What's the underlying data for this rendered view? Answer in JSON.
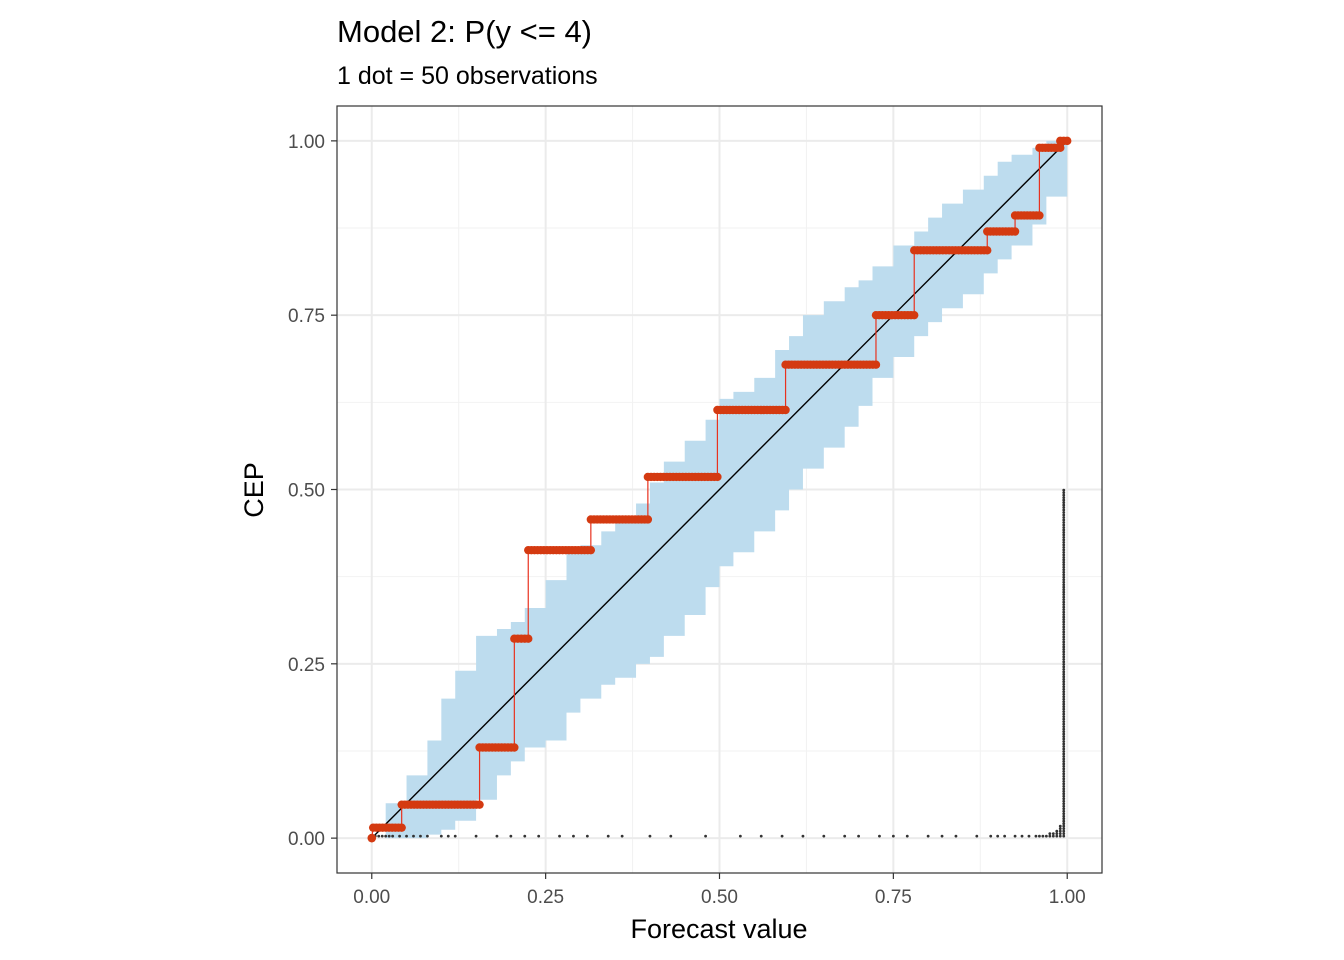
{
  "chart_data": {
    "type": "scatter",
    "title": "Model 2: P(y <= 4)",
    "subtitle": "1 dot = 50 observations",
    "xlabel": "Forecast value",
    "ylabel": "CEP",
    "xlim": [
      -0.05,
      1.05
    ],
    "ylim": [
      -0.05,
      1.05
    ],
    "x_ticks": [
      "0.00",
      "0.25",
      "0.50",
      "0.75",
      "1.00"
    ],
    "y_ticks": [
      "0.00",
      "0.25",
      "0.50",
      "0.75",
      "1.00"
    ],
    "grid": true,
    "colors": {
      "cep": "#d43a11",
      "band": "#bddcee",
      "diagonal": "#000000",
      "histogram": "#333333"
    },
    "cep_steps": [
      {
        "x0": 0.0,
        "x1": 0.0,
        "y": 0.0
      },
      {
        "x0": 0.002,
        "x1": 0.043,
        "y": 0.015
      },
      {
        "x0": 0.043,
        "x1": 0.155,
        "y": 0.048
      },
      {
        "x0": 0.155,
        "x1": 0.205,
        "y": 0.13
      },
      {
        "x0": 0.205,
        "x1": 0.225,
        "y": 0.286
      },
      {
        "x0": 0.225,
        "x1": 0.315,
        "y": 0.413
      },
      {
        "x0": 0.315,
        "x1": 0.397,
        "y": 0.457
      },
      {
        "x0": 0.397,
        "x1": 0.497,
        "y": 0.518
      },
      {
        "x0": 0.497,
        "x1": 0.595,
        "y": 0.614
      },
      {
        "x0": 0.595,
        "x1": 0.725,
        "y": 0.679
      },
      {
        "x0": 0.725,
        "x1": 0.78,
        "y": 0.75
      },
      {
        "x0": 0.78,
        "x1": 0.885,
        "y": 0.843
      },
      {
        "x0": 0.885,
        "x1": 0.925,
        "y": 0.87
      },
      {
        "x0": 0.925,
        "x1": 0.96,
        "y": 0.893
      },
      {
        "x0": 0.96,
        "x1": 0.99,
        "y": 0.99
      },
      {
        "x0": 0.99,
        "x1": 1.0,
        "y": 1.0
      }
    ],
    "band": {
      "x": [
        0.0,
        0.02,
        0.05,
        0.08,
        0.1,
        0.12,
        0.15,
        0.18,
        0.2,
        0.22,
        0.25,
        0.28,
        0.3,
        0.33,
        0.35,
        0.38,
        0.4,
        0.42,
        0.45,
        0.48,
        0.5,
        0.52,
        0.55,
        0.58,
        0.6,
        0.62,
        0.65,
        0.68,
        0.7,
        0.72,
        0.75,
        0.78,
        0.8,
        0.82,
        0.85,
        0.88,
        0.9,
        0.92,
        0.95,
        0.97,
        1.0
      ],
      "lower": [
        0.0,
        0.0,
        0.0,
        0.005,
        0.012,
        0.025,
        0.055,
        0.09,
        0.11,
        0.13,
        0.14,
        0.18,
        0.2,
        0.22,
        0.23,
        0.25,
        0.26,
        0.29,
        0.32,
        0.36,
        0.39,
        0.41,
        0.44,
        0.47,
        0.5,
        0.53,
        0.56,
        0.59,
        0.62,
        0.66,
        0.69,
        0.72,
        0.74,
        0.76,
        0.78,
        0.81,
        0.83,
        0.85,
        0.88,
        0.92,
        0.99
      ],
      "upper": [
        0.0,
        0.05,
        0.09,
        0.14,
        0.2,
        0.24,
        0.29,
        0.3,
        0.31,
        0.33,
        0.37,
        0.41,
        0.42,
        0.44,
        0.46,
        0.48,
        0.51,
        0.54,
        0.57,
        0.6,
        0.63,
        0.64,
        0.66,
        0.7,
        0.72,
        0.75,
        0.77,
        0.79,
        0.8,
        0.82,
        0.85,
        0.87,
        0.89,
        0.91,
        0.93,
        0.95,
        0.97,
        0.98,
        0.99,
        1.0,
        1.0
      ]
    },
    "histogram": {
      "x": [
        0.0,
        0.005,
        0.01,
        0.015,
        0.02,
        0.025,
        0.03,
        0.04,
        0.05,
        0.06,
        0.07,
        0.08,
        0.1,
        0.11,
        0.12,
        0.15,
        0.18,
        0.2,
        0.22,
        0.24,
        0.27,
        0.29,
        0.31,
        0.34,
        0.36,
        0.4,
        0.43,
        0.48,
        0.53,
        0.56,
        0.59,
        0.62,
        0.65,
        0.68,
        0.7,
        0.73,
        0.75,
        0.77,
        0.8,
        0.82,
        0.84,
        0.87,
        0.89,
        0.9,
        0.91,
        0.925,
        0.935,
        0.945,
        0.955,
        0.96,
        0.965,
        0.97,
        0.975,
        0.98,
        0.985,
        0.99,
        0.995
      ],
      "dots": [
        1,
        1,
        1,
        1,
        1,
        1,
        1,
        1,
        1,
        1,
        1,
        1,
        1,
        1,
        1,
        1,
        1,
        1,
        1,
        1,
        1,
        1,
        1,
        1,
        1,
        1,
        1,
        1,
        1,
        1,
        1,
        1,
        1,
        1,
        1,
        1,
        1,
        1,
        1,
        1,
        1,
        1,
        1,
        1,
        1,
        1,
        1,
        1,
        1,
        1,
        1,
        1,
        2,
        2,
        3,
        5,
        140
      ]
    }
  }
}
